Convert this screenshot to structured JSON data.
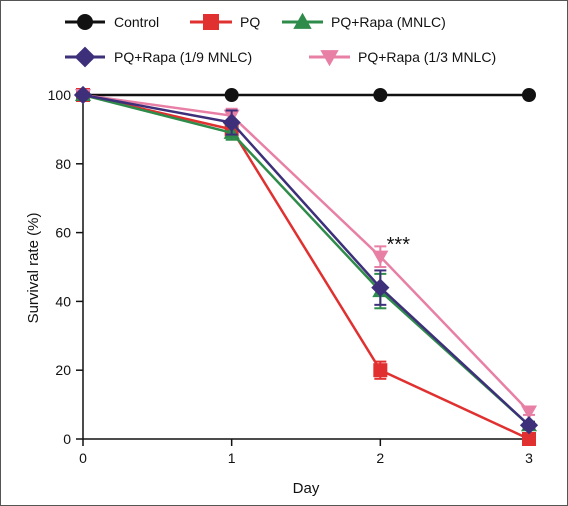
{
  "chart_data": {
    "type": "line",
    "title": "",
    "xlabel": "Day",
    "ylabel": "Survival rate (%)",
    "x": [
      0,
      1,
      2,
      3
    ],
    "xticks": [
      "0",
      "1",
      "2",
      "3"
    ],
    "yticks": [
      "0",
      "20",
      "40",
      "60",
      "80",
      "100"
    ],
    "xlim": [
      0,
      3
    ],
    "ylim": [
      0,
      100
    ],
    "grid": false,
    "legend_position": "top",
    "series": [
      {
        "name": "Control",
        "values": [
          100,
          100,
          100,
          100
        ],
        "errors": [
          0,
          0,
          0,
          0
        ],
        "color": "#111111",
        "marker": "circle"
      },
      {
        "name": "PQ",
        "values": [
          100,
          90,
          20,
          0
        ],
        "errors": [
          0,
          2,
          2.5,
          0
        ],
        "color": "#e03030",
        "marker": "square"
      },
      {
        "name": "PQ+Rapa (MNLC)",
        "values": [
          100,
          89,
          43,
          4
        ],
        "errors": [
          0,
          2,
          5,
          1
        ],
        "color": "#2e8b4a",
        "marker": "triangle-up"
      },
      {
        "name": "PQ+Rapa (1/9 MNLC)",
        "values": [
          100,
          92,
          44,
          4
        ],
        "errors": [
          0,
          3.5,
          5,
          1
        ],
        "color": "#3d2f7a",
        "marker": "diamond"
      },
      {
        "name": "PQ+Rapa (1/3 MNLC)",
        "values": [
          100,
          94,
          53,
          8
        ],
        "errors": [
          0,
          2,
          3,
          1
        ],
        "color": "#e87fa5",
        "marker": "triangle-down"
      }
    ],
    "annotations": [
      {
        "text": "***",
        "x": 2,
        "y": 57
      }
    ]
  }
}
